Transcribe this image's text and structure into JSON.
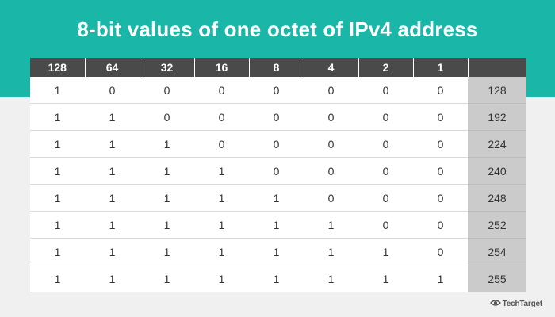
{
  "title": "8-bit values of one octet of IPv4 address",
  "brand": {
    "name": "TechTarget",
    "icon": "eye-icon"
  },
  "colors": {
    "band": "#1ab6a7",
    "header": "#4a4a4a",
    "total_col": "#cbcbcb"
  },
  "table": {
    "headers": [
      "128",
      "64",
      "32",
      "16",
      "8",
      "4",
      "2",
      "1",
      ""
    ],
    "rows": [
      {
        "bits": [
          "1",
          "0",
          "0",
          "0",
          "0",
          "0",
          "0",
          "0"
        ],
        "value": "128"
      },
      {
        "bits": [
          "1",
          "1",
          "0",
          "0",
          "0",
          "0",
          "0",
          "0"
        ],
        "value": "192"
      },
      {
        "bits": [
          "1",
          "1",
          "1",
          "0",
          "0",
          "0",
          "0",
          "0"
        ],
        "value": "224"
      },
      {
        "bits": [
          "1",
          "1",
          "1",
          "1",
          "0",
          "0",
          "0",
          "0"
        ],
        "value": "240"
      },
      {
        "bits": [
          "1",
          "1",
          "1",
          "1",
          "1",
          "0",
          "0",
          "0"
        ],
        "value": "248"
      },
      {
        "bits": [
          "1",
          "1",
          "1",
          "1",
          "1",
          "1",
          "0",
          "0"
        ],
        "value": "252"
      },
      {
        "bits": [
          "1",
          "1",
          "1",
          "1",
          "1",
          "1",
          "1",
          "0"
        ],
        "value": "254"
      },
      {
        "bits": [
          "1",
          "1",
          "1",
          "1",
          "1",
          "1",
          "1",
          "1"
        ],
        "value": "255"
      }
    ]
  }
}
